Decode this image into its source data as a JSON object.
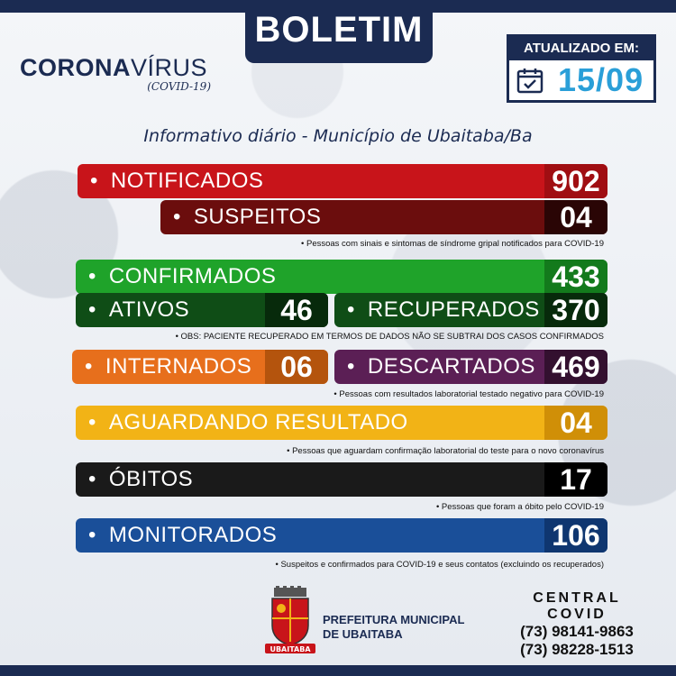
{
  "header": {
    "boletim": "BOLETIM",
    "logo_main_a": "CORONA",
    "logo_main_b": "VÍRUS",
    "logo_sub": "(COVID-19)",
    "updated_label": "ATUALIZADO EM:",
    "updated_date": "15/09",
    "subtitle": "Informativo diário - Município de Ubaitaba/Ba"
  },
  "stats": {
    "notificados": {
      "label": "NOTIFICADOS",
      "value": "902"
    },
    "suspeitos": {
      "label": "SUSPEITOS",
      "value": "04"
    },
    "suspeitos_note": "Pessoas com sinais e sintomas de síndrome gripal notificados para COVID-19",
    "confirmados": {
      "label": "CONFIRMADOS",
      "value": "433"
    },
    "ativos": {
      "label": "ATIVOS",
      "value": "46"
    },
    "recuperados": {
      "label": "RECUPERADOS",
      "value": "370"
    },
    "confirmados_note": "OBS: PACIENTE RECUPERADO EM TERMOS DE DADOS NÃO SE SUBTRAI DOS CASOS CONFIRMADOS",
    "internados": {
      "label": "INTERNADOS",
      "value": "06"
    },
    "descartados": {
      "label": "DESCARTADOS",
      "value": "469"
    },
    "descartados_note": "Pessoas com resultados laboratorial testado negativo para COVID-19",
    "aguardando": {
      "label": "AGUARDANDO RESULTADO",
      "value": "04"
    },
    "aguardando_note": "Pessoas que aguardam confirmação laboratorial do teste para o novo coronavírus",
    "obitos": {
      "label": "ÓBITOS",
      "value": "17"
    },
    "obitos_note": "Pessoas que foram a óbito pelo COVID-19",
    "monitorados": {
      "label": "MONITORADOS",
      "value": "106"
    },
    "monitorados_note": "Suspeitos e confirmados para COVID-19 e seus contatos (excluindo os recuperados)"
  },
  "footer": {
    "pref_line1": "PREFEITURA MUNICIPAL",
    "pref_line2": "DE UBAITABA",
    "crest_text": "UBAITABA",
    "central_title": "CENTRAL COVID",
    "phone1": "(73) 98141-9863",
    "phone2": "(73) 98228-1513"
  },
  "colors": {
    "navy": "#1b2b52",
    "red": "#c8141a",
    "dark_red": "#6b0d0d",
    "green": "#1fa32a",
    "dark_green": "#0f4d16",
    "orange": "#e76f1c",
    "purple": "#5b1f55",
    "yellow": "#f2b316",
    "black": "#141414",
    "blue": "#1a4f99",
    "accent_date": "#2a9fd8"
  },
  "icons": {
    "calendar": "calendar-check-icon",
    "crest": "municipal-crest-icon"
  }
}
